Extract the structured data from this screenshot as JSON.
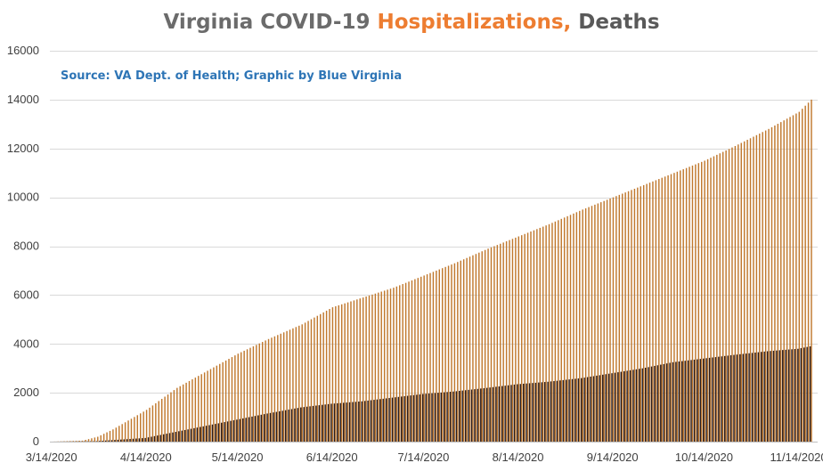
{
  "title": {
    "part1": "Virginia COVID-19 ",
    "part2": "Hospitalizations,",
    "part3": " Deaths"
  },
  "source": "Source: VA Dept. of Health; Graphic by Blue Virginia",
  "colors": {
    "hospitalizations": "#c0782d",
    "deaths": "#2b1d1d",
    "gridline": "#d9d9d9",
    "title_gray": "#6b6b6b",
    "title_orange": "#ed7d31",
    "source_blue": "#2e75b6"
  },
  "chart_data": {
    "type": "bar",
    "title": "Virginia COVID-19 Hospitalizations, Deaths",
    "subtitle": "Source: VA Dept. of Health; Graphic by Blue Virginia",
    "x_start": "3/14/2020",
    "x_end": "11/18/2020",
    "xlabel": "",
    "ylabel": "",
    "ylim": [
      0,
      16000
    ],
    "yticks": [
      0,
      2000,
      4000,
      6000,
      8000,
      10000,
      12000,
      14000,
      16000
    ],
    "xtick_labels": [
      "3/14/2020",
      "4/14/2020",
      "5/14/2020",
      "6/14/2020",
      "7/14/2020",
      "8/14/2020",
      "9/14/2020",
      "10/14/2020",
      "11/14/2020"
    ],
    "grid": true,
    "legend": "none",
    "series": [
      {
        "name": "Hospitalizations",
        "keypoints": [
          {
            "date": "3/14/2020",
            "value": 0
          },
          {
            "date": "3/24/2020",
            "value": 40
          },
          {
            "date": "3/29/2020",
            "value": 200
          },
          {
            "date": "4/3/2020",
            "value": 500
          },
          {
            "date": "4/14/2020",
            "value": 1300
          },
          {
            "date": "4/24/2020",
            "value": 2200
          },
          {
            "date": "5/4/2020",
            "value": 2900
          },
          {
            "date": "5/14/2020",
            "value": 3600
          },
          {
            "date": "5/24/2020",
            "value": 4200
          },
          {
            "date": "6/4/2020",
            "value": 4800
          },
          {
            "date": "6/14/2020",
            "value": 5500
          },
          {
            "date": "6/24/2020",
            "value": 5900
          },
          {
            "date": "7/4/2020",
            "value": 6300
          },
          {
            "date": "7/14/2020",
            "value": 6800
          },
          {
            "date": "7/24/2020",
            "value": 7300
          },
          {
            "date": "8/4/2020",
            "value": 7900
          },
          {
            "date": "8/14/2020",
            "value": 8400
          },
          {
            "date": "8/24/2020",
            "value": 8900
          },
          {
            "date": "9/4/2020",
            "value": 9500
          },
          {
            "date": "9/14/2020",
            "value": 10000
          },
          {
            "date": "9/24/2020",
            "value": 10500
          },
          {
            "date": "10/4/2020",
            "value": 11000
          },
          {
            "date": "10/14/2020",
            "value": 11500
          },
          {
            "date": "10/24/2020",
            "value": 12100
          },
          {
            "date": "11/4/2020",
            "value": 12800
          },
          {
            "date": "11/14/2020",
            "value": 13500
          },
          {
            "date": "11/18/2020",
            "value": 14000
          }
        ]
      },
      {
        "name": "Deaths",
        "keypoints": [
          {
            "date": "3/14/2020",
            "value": 0
          },
          {
            "date": "3/29/2020",
            "value": 20
          },
          {
            "date": "4/14/2020",
            "value": 150
          },
          {
            "date": "4/24/2020",
            "value": 400
          },
          {
            "date": "5/4/2020",
            "value": 650
          },
          {
            "date": "5/14/2020",
            "value": 900
          },
          {
            "date": "5/24/2020",
            "value": 1150
          },
          {
            "date": "6/4/2020",
            "value": 1400
          },
          {
            "date": "6/14/2020",
            "value": 1550
          },
          {
            "date": "6/24/2020",
            "value": 1650
          },
          {
            "date": "7/4/2020",
            "value": 1800
          },
          {
            "date": "7/14/2020",
            "value": 1950
          },
          {
            "date": "7/24/2020",
            "value": 2050
          },
          {
            "date": "8/4/2020",
            "value": 2200
          },
          {
            "date": "8/14/2020",
            "value": 2350
          },
          {
            "date": "8/24/2020",
            "value": 2450
          },
          {
            "date": "9/4/2020",
            "value": 2600
          },
          {
            "date": "9/14/2020",
            "value": 2800
          },
          {
            "date": "9/24/2020",
            "value": 3000
          },
          {
            "date": "10/4/2020",
            "value": 3250
          },
          {
            "date": "10/14/2020",
            "value": 3400
          },
          {
            "date": "10/24/2020",
            "value": 3550
          },
          {
            "date": "11/4/2020",
            "value": 3700
          },
          {
            "date": "11/14/2020",
            "value": 3800
          },
          {
            "date": "11/18/2020",
            "value": 3900
          }
        ]
      }
    ]
  }
}
